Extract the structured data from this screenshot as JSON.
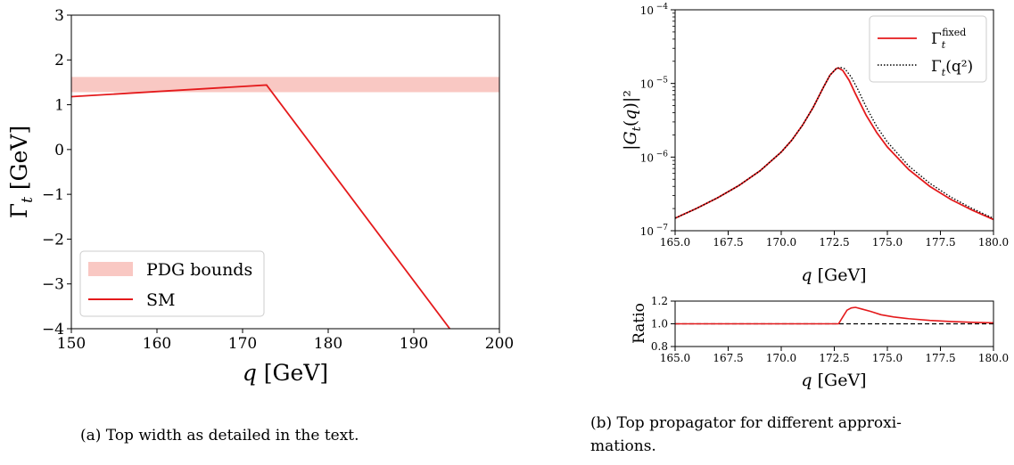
{
  "chart_data": [
    {
      "type": "line",
      "xlabel": "q [GeV]",
      "ylabel": "Γt [GeV]",
      "xlim": [
        150,
        200
      ],
      "ylim": [
        -4,
        3
      ],
      "x_ticks": [
        "150",
        "160",
        "170",
        "180",
        "190",
        "200"
      ],
      "y_ticks": [
        "−4",
        "−3",
        "−2",
        "−1",
        "0",
        "1",
        "2",
        "3"
      ],
      "band": {
        "name": "PDG bounds",
        "ymin": 1.28,
        "ymax": 1.62,
        "color": "#f9c8c3"
      },
      "series": [
        {
          "name": "SM",
          "color": "#e41a1c",
          "x": [
            150,
            172.8,
            194.2
          ],
          "y": [
            1.18,
            1.44,
            -4.0
          ]
        }
      ],
      "legend": {
        "position": "lower-left",
        "entries": [
          "PDG bounds",
          "SM"
        ]
      },
      "grid": false
    },
    {
      "type": "line",
      "xlabel": "q [GeV]",
      "ylabel": "|Gt(q)|²",
      "yscale": "log",
      "xlim": [
        165,
        180
      ],
      "ylim": [
        1e-07,
        0.0001
      ],
      "x_ticks": [
        "165.0",
        "167.5",
        "170.0",
        "172.5",
        "175.0",
        "177.5",
        "180.0"
      ],
      "y_ticks": [
        {
          "base": "10",
          "exp": "−7"
        },
        {
          "base": "10",
          "exp": "−6"
        },
        {
          "base": "10",
          "exp": "−5"
        },
        {
          "base": "10",
          "exp": "−4"
        }
      ],
      "series": [
        {
          "name": "Γt fixed",
          "legend_main": "Γ",
          "legend_sub": "t",
          "legend_sup": "fixed",
          "color": "#e41a1c",
          "style": "solid",
          "x": [
            165.0,
            166.0,
            167.0,
            168.0,
            169.0,
            170.0,
            170.5,
            171.0,
            171.5,
            172.0,
            172.3,
            172.6,
            172.7,
            172.9,
            173.2,
            173.5,
            174.0,
            174.5,
            175.0,
            176.0,
            177.0,
            178.0,
            179.0,
            180.0
          ],
          "y": [
            1.48e-07,
            2e-07,
            2.8e-07,
            4.1e-07,
            6.5e-07,
            1.17e-06,
            1.7e-06,
            2.7e-06,
            4.7e-06,
            9e-06,
            1.3e-05,
            1.6e-05,
            1.62e-05,
            1.5e-05,
            1.1e-05,
            7.2e-06,
            3.7e-06,
            2.15e-06,
            1.37e-06,
            6.8e-07,
            4e-07,
            2.65e-07,
            1.9e-07,
            1.42e-07
          ]
        },
        {
          "name": "Γt(q²)",
          "legend_main": "Γ",
          "legend_sub": "t",
          "legend_rest": "(q²)",
          "color": "#000000",
          "style": "dotted",
          "x": [
            165.0,
            166.0,
            167.0,
            168.0,
            169.0,
            170.0,
            170.5,
            171.0,
            171.5,
            172.0,
            172.3,
            172.6,
            172.8,
            173.0,
            173.3,
            173.6,
            174.0,
            174.5,
            175.0,
            176.0,
            177.0,
            178.0,
            179.0,
            180.0
          ],
          "y": [
            1.48e-07,
            2e-07,
            2.8e-07,
            4.1e-07,
            6.5e-07,
            1.17e-06,
            1.7e-06,
            2.7e-06,
            4.7e-06,
            9e-06,
            1.3e-05,
            1.6e-05,
            1.65e-05,
            1.58e-05,
            1.22e-05,
            8.4e-06,
            4.8e-06,
            2.6e-06,
            1.6e-06,
            7.6e-07,
            4.4e-07,
            2.85e-07,
            2e-07,
            1.47e-07
          ]
        }
      ],
      "legend": {
        "position": "top-right"
      },
      "grid": false
    },
    {
      "type": "line",
      "xlabel": "q [GeV]",
      "ylabel": "Ratio",
      "xlim": [
        165,
        180
      ],
      "ylim": [
        0.8,
        1.2
      ],
      "x_ticks": [
        "165.0",
        "167.5",
        "170.0",
        "172.5",
        "175.0",
        "177.5",
        "180.0"
      ],
      "y_ticks": [
        "0.8",
        "1.0",
        "1.2"
      ],
      "reference_line": {
        "y": 1.0,
        "style": "dashed",
        "color": "#000000"
      },
      "series": [
        {
          "name": "",
          "color": "#e41a1c",
          "x": [
            165.0,
            170.0,
            172.7,
            172.9,
            173.1,
            173.3,
            173.5,
            173.8,
            174.2,
            174.7,
            175.3,
            176.0,
            177.0,
            178.0,
            179.0,
            180.0
          ],
          "y": [
            1.0,
            1.0,
            1.0,
            1.06,
            1.12,
            1.14,
            1.145,
            1.13,
            1.11,
            1.08,
            1.06,
            1.045,
            1.03,
            1.02,
            1.013,
            1.008
          ]
        }
      ],
      "grid": false
    }
  ],
  "captions": {
    "a": "(a) Top width as detailed in the text.",
    "b_line1": "(b) Top propagator for different approxi-",
    "b_line2": "mations."
  }
}
